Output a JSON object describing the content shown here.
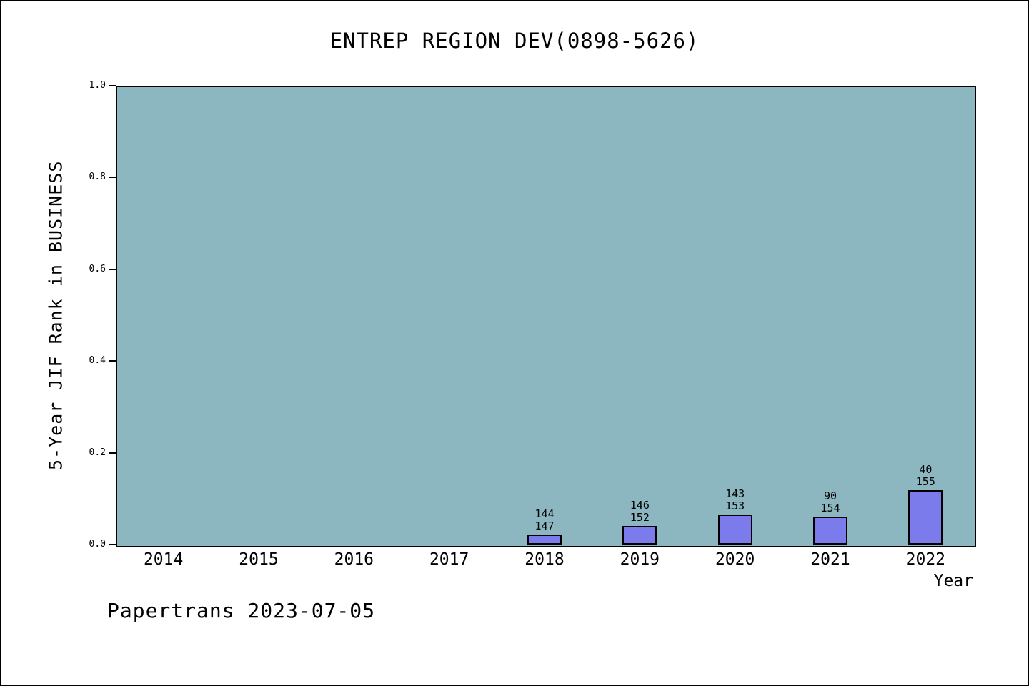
{
  "footer": "Papertrans 2023-07-05",
  "colors": {
    "plot_background": "#8cb6c0",
    "bar_fill": "#7b7bec",
    "bar_border": "#000000",
    "axis": "#000000"
  },
  "chart_data": {
    "type": "bar",
    "title": "ENTREP REGION DEV(0898-5626)",
    "xlabel": "Year",
    "ylabel": "5-Year JIF Rank in BUSINESS",
    "categories": [
      "2014",
      "2015",
      "2016",
      "2017",
      "2018",
      "2019",
      "2020",
      "2021",
      "2022"
    ],
    "values": [
      0,
      0,
      0,
      0,
      0.022,
      0.041,
      0.066,
      0.061,
      0.118
    ],
    "bar_labels": [
      null,
      null,
      null,
      null,
      [
        "144",
        "147"
      ],
      [
        "146",
        "152"
      ],
      [
        "143",
        "153"
      ],
      [
        "90",
        "154"
      ],
      [
        "40",
        "155"
      ]
    ],
    "yticks": [
      "0.0",
      "0.2",
      "0.4",
      "0.6",
      "0.8",
      "1.0"
    ],
    "ylim": [
      0,
      1
    ],
    "grid": false,
    "legend": null
  }
}
